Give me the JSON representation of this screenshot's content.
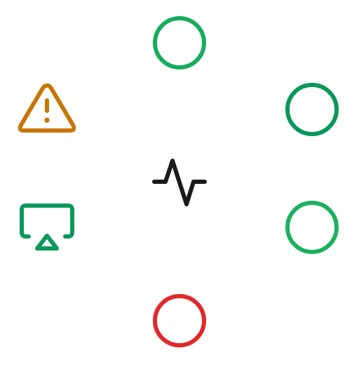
{
  "icons": [
    {
      "id": "icon-top",
      "name": "circle-icon",
      "color": "#16ad5e"
    },
    {
      "id": "icon-right-top",
      "name": "circle-icon",
      "color": "#07985a"
    },
    {
      "id": "icon-right-bot",
      "name": "circle-icon",
      "color": "#1db15e"
    },
    {
      "id": "icon-bottom",
      "name": "circle-icon",
      "color": "#e2292a"
    },
    {
      "id": "icon-warning",
      "name": "warning-icon",
      "color": "#c87508"
    },
    {
      "id": "icon-airplay",
      "name": "airplay-icon",
      "color": "#0b9a5b"
    },
    {
      "id": "icon-pulse",
      "name": "activity-icon",
      "color": "#1a1a1a"
    }
  ]
}
